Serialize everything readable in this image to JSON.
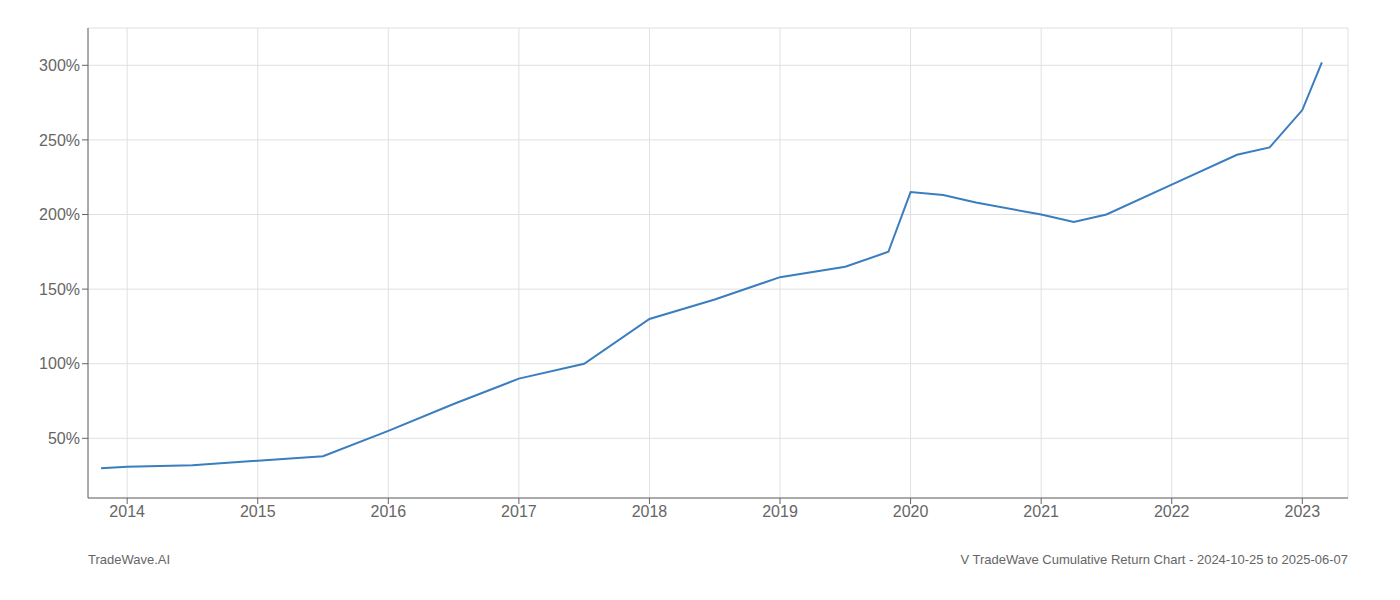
{
  "chart_data": {
    "type": "line",
    "x": [
      2013.8,
      2014.0,
      2014.5,
      2015.0,
      2015.5,
      2016.0,
      2016.5,
      2017.0,
      2017.5,
      2018.0,
      2018.5,
      2019.0,
      2019.5,
      2019.83,
      2020.0,
      2020.25,
      2020.5,
      2021.0,
      2021.25,
      2021.5,
      2022.0,
      2022.5,
      2022.75,
      2023.0,
      2023.15
    ],
    "values": [
      30,
      31,
      32,
      35,
      38,
      55,
      73,
      90,
      100,
      130,
      143,
      158,
      165,
      175,
      215,
      213,
      208,
      200,
      195,
      200,
      220,
      240,
      245,
      270,
      302
    ],
    "color": "#3a7ebf",
    "xlim": [
      2013.7,
      2023.35
    ],
    "ylim": [
      10,
      325
    ],
    "xticks": [
      2014,
      2015,
      2016,
      2017,
      2018,
      2019,
      2020,
      2021,
      2022,
      2023
    ],
    "yticks": [
      {
        "value": 50,
        "label": "50%"
      },
      {
        "value": 100,
        "label": "100%"
      },
      {
        "value": 150,
        "label": "150%"
      },
      {
        "value": 200,
        "label": "200%"
      },
      {
        "value": 250,
        "label": "250%"
      },
      {
        "value": 300,
        "label": "300%"
      }
    ],
    "grid": true,
    "annotations": [
      {
        "text": "TradeWave.AI"
      },
      {
        "text": "V TradeWave Cumulative Return Chart - 2024-10-25 to 2025-06-07"
      }
    ]
  }
}
